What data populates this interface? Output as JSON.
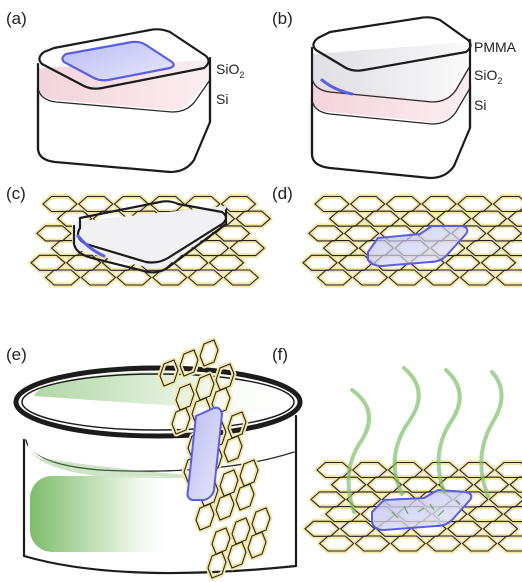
{
  "panels": {
    "a": {
      "tag": "(a)",
      "layer_top_main": "SiO",
      "layer_top_sub": "2",
      "layer_bottom": "Si"
    },
    "b": {
      "tag": "(b)",
      "layer_1": "PMMA",
      "layer_2_main": "SiO",
      "layer_2_sub": "2",
      "layer_3": "Si"
    },
    "c": {
      "tag": "(c)"
    },
    "d": {
      "tag": "(d)"
    },
    "e": {
      "tag": "(e)"
    },
    "f": {
      "tag": "(f)"
    }
  },
  "colors": {
    "flake_blue": "#5a5ee6",
    "oxide_pink": "#f0d4dc",
    "silicon_blue": "#dfeaf6",
    "graphene_glow": "#f3e7a8",
    "solution_green": "#7fbf6a",
    "ink": "#1c1c1c"
  }
}
